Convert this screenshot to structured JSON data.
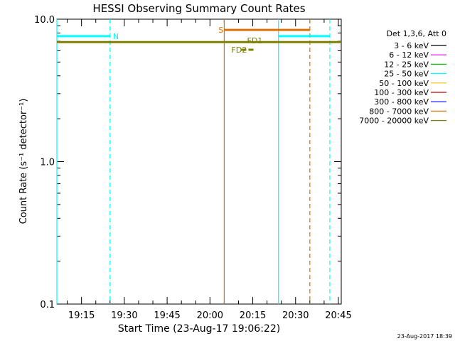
{
  "chart_data": {
    "type": "line",
    "title": "HESSI Observing Summary Count Rates",
    "xlabel": "Start Time (23-Aug-17 19:06:22)",
    "ylabel": "Count Rate (s⁻¹ detector⁻¹)",
    "y_scale": "log",
    "ylim": [
      0.1,
      10.0
    ],
    "y_ticks": [
      {
        "value": 0.1,
        "label": "0.1"
      },
      {
        "value": 1.0,
        "label": "1.0"
      },
      {
        "value": 10.0,
        "label": "10.0"
      }
    ],
    "xlim": [
      "19:06:22",
      "20:46:00"
    ],
    "x_ticks": [
      "19:15",
      "19:30",
      "19:45",
      "20:00",
      "20:15",
      "20:30",
      "20:45"
    ],
    "legend_title": "Det 1,3,6, Att 0",
    "legend_position": "right",
    "legend": [
      {
        "label": "3 - 6 keV",
        "color": "#000000"
      },
      {
        "label": "6 - 12 keV",
        "color": "#e000e0"
      },
      {
        "label": "12 - 25 keV",
        "color": "#00c000"
      },
      {
        "label": "25 - 50 keV",
        "color": "#00ffff"
      },
      {
        "label": "50 - 100 keV",
        "color": "#e8c000"
      },
      {
        "label": "100 - 300 keV",
        "color": "#c00000"
      },
      {
        "label": "300 - 800 keV",
        "color": "#0000ff"
      },
      {
        "label": "800 - 7000 keV",
        "color": "#e07000"
      },
      {
        "label": "7000 - 20000 keV",
        "color": "#808000"
      }
    ],
    "series": [
      {
        "name": "7000 - 20000 keV",
        "color": "#808000",
        "x": [
          "19:06:22",
          "20:46:00"
        ],
        "y": [
          6.9,
          6.9
        ]
      },
      {
        "name": "25 - 50 keV",
        "color": "#00ffff",
        "segments": [
          {
            "x": [
              "19:06:22",
              "19:25:00"
            ],
            "y": [
              7.6,
              7.6
            ]
          },
          {
            "x": [
              "20:24:00",
              "20:42:00"
            ],
            "y": [
              7.6,
              7.6
            ]
          }
        ]
      },
      {
        "name": "800 - 7000 keV",
        "color": "#e07000",
        "x": [
          "20:05:00",
          "20:35:00"
        ],
        "y": [
          8.4,
          8.4
        ]
      }
    ],
    "vertical_markers": [
      {
        "time": "19:06:22",
        "style": "solid",
        "color": "#00ffff"
      },
      {
        "time": "19:25:00",
        "style": "dashed",
        "color": "#00ffff"
      },
      {
        "time": "20:05:00",
        "style": "solid",
        "color": "#e07000"
      },
      {
        "time": "20:24:00",
        "style": "solid",
        "color": "#00ffff"
      },
      {
        "time": "20:35:00",
        "style": "dashed",
        "color": "#e07000"
      },
      {
        "time": "20:42:00",
        "style": "dashed",
        "color": "#00ffff"
      }
    ],
    "annotations": [
      {
        "text": "N",
        "time": "19:26:00",
        "y": 7.6,
        "color": "#00ffff"
      },
      {
        "text": "S",
        "time": "20:03:00",
        "y": 8.4,
        "color": "#e07000"
      },
      {
        "text": "FD1",
        "time": "20:13:00",
        "y": 7.1,
        "color": "#808000"
      },
      {
        "text": "FD2",
        "time": "20:07:30",
        "y": 6.1,
        "color": "#808000"
      }
    ],
    "flare_decimation_bar": {
      "x": [
        "20:11:00",
        "20:15:30"
      ],
      "y": 6.1,
      "color": "#808000",
      "style": "dashed"
    },
    "timestamp": "23-Aug-2017 18:39"
  }
}
